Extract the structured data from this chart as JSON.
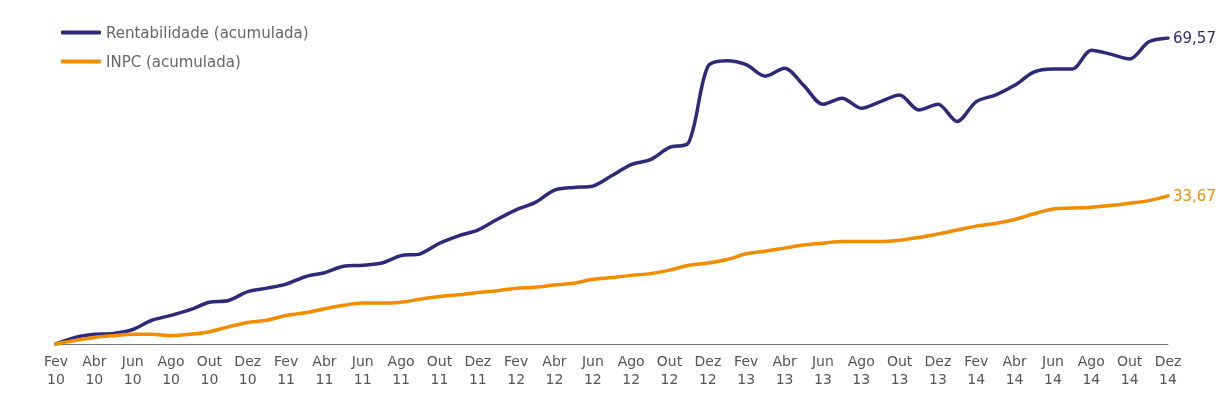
{
  "chart_data": {
    "type": "line",
    "legend": "top left",
    "marker": "none",
    "line_style": "solid",
    "grid": false,
    "categories": [
      "Fev\n10",
      null,
      "Abr\n10",
      null,
      "Jun\n10",
      null,
      "Ago\n10",
      null,
      "Out\n10",
      null,
      "Dez\n10",
      null,
      "Fev\n11",
      null,
      "Abr\n11",
      null,
      "Jun\n11",
      null,
      "Ago\n11",
      null,
      "Out\n11",
      null,
      "Dez\n11",
      null,
      "Fev\n12",
      null,
      "Abr\n12",
      null,
      "Jun\n12",
      null,
      "Ago\n12",
      null,
      "Out\n12",
      null,
      "Dez\n12",
      null,
      "Fev\n13",
      null,
      "Abr\n13",
      null,
      "Jun\n13",
      null,
      "Ago\n13",
      null,
      "Out\n13",
      null,
      "Dez\n13",
      null,
      "Fev\n14",
      null,
      "Abr\n14",
      null,
      "Jun\n14",
      null,
      "Ago\n14",
      null,
      "Out\n14",
      null,
      "Dez\n14"
    ],
    "series": [
      {
        "name": "Rentabilidade (acumulada)",
        "color": "#2e2a7a",
        "values": [
          0,
          1.5,
          2.2,
          2.4,
          3.3,
          5.4,
          6.5,
          7.8,
          9.5,
          9.9,
          11.9,
          12.7,
          13.6,
          15.3,
          16.2,
          17.7,
          17.9,
          18.4,
          20.1,
          20.5,
          22.9,
          24.6,
          25.9,
          28.3,
          30.5,
          32.2,
          35.0,
          35.6,
          35.9,
          38.3,
          40.8,
          41.9,
          44.7,
          45.8,
          63.1,
          64.4,
          63.5,
          60.9,
          62.7,
          58.8,
          54.5,
          55.9,
          53.6,
          55.1,
          56.6,
          53.2,
          54.5,
          50.6,
          55.1,
          56.6,
          58.8,
          61.8,
          62.5,
          62.5,
          66.8,
          65.9,
          64.8,
          68.7,
          69.57
        ],
        "value_labels": [
          null,
          null,
          null,
          null,
          null,
          null,
          null,
          null,
          null,
          null,
          null,
          null,
          null,
          null,
          null,
          null,
          null,
          null,
          null,
          null,
          null,
          null,
          null,
          null,
          null,
          null,
          null,
          null,
          null,
          null,
          null,
          null,
          null,
          null,
          null,
          null,
          null,
          null,
          null,
          null,
          null,
          null,
          null,
          null,
          null,
          null,
          null,
          null,
          null,
          null,
          null,
          null,
          null,
          null,
          null,
          null,
          null,
          null,
          "69,57"
        ]
      },
      {
        "name": "INPC (acumulada)",
        "color": "#f28c00",
        "values": [
          0,
          0.8,
          1.5,
          1.9,
          2.2,
          2.2,
          1.9,
          2.2,
          2.8,
          3.9,
          4.9,
          5.4,
          6.5,
          7.1,
          8.0,
          8.8,
          9.3,
          9.3,
          9.5,
          10.2,
          10.8,
          11.2,
          11.7,
          12.1,
          12.7,
          12.9,
          13.4,
          13.8,
          14.7,
          15.1,
          15.6,
          16.0,
          16.8,
          17.9,
          18.4,
          19.2,
          20.5,
          21.1,
          21.8,
          22.5,
          22.9,
          23.3,
          23.3,
          23.3,
          23.6,
          24.2,
          25.0,
          25.9,
          26.8,
          27.4,
          28.3,
          29.6,
          30.7,
          30.9,
          31.1,
          31.5,
          32.0,
          32.6,
          33.67
        ],
        "value_labels": [
          null,
          null,
          null,
          null,
          null,
          null,
          null,
          null,
          null,
          null,
          null,
          null,
          null,
          null,
          null,
          null,
          null,
          null,
          null,
          null,
          null,
          null,
          null,
          null,
          null,
          null,
          null,
          null,
          null,
          null,
          null,
          null,
          null,
          null,
          null,
          null,
          null,
          null,
          null,
          null,
          null,
          null,
          null,
          null,
          null,
          null,
          null,
          null,
          null,
          null,
          null,
          null,
          null,
          null,
          null,
          null,
          null,
          null,
          "33,67"
        ]
      }
    ]
  }
}
